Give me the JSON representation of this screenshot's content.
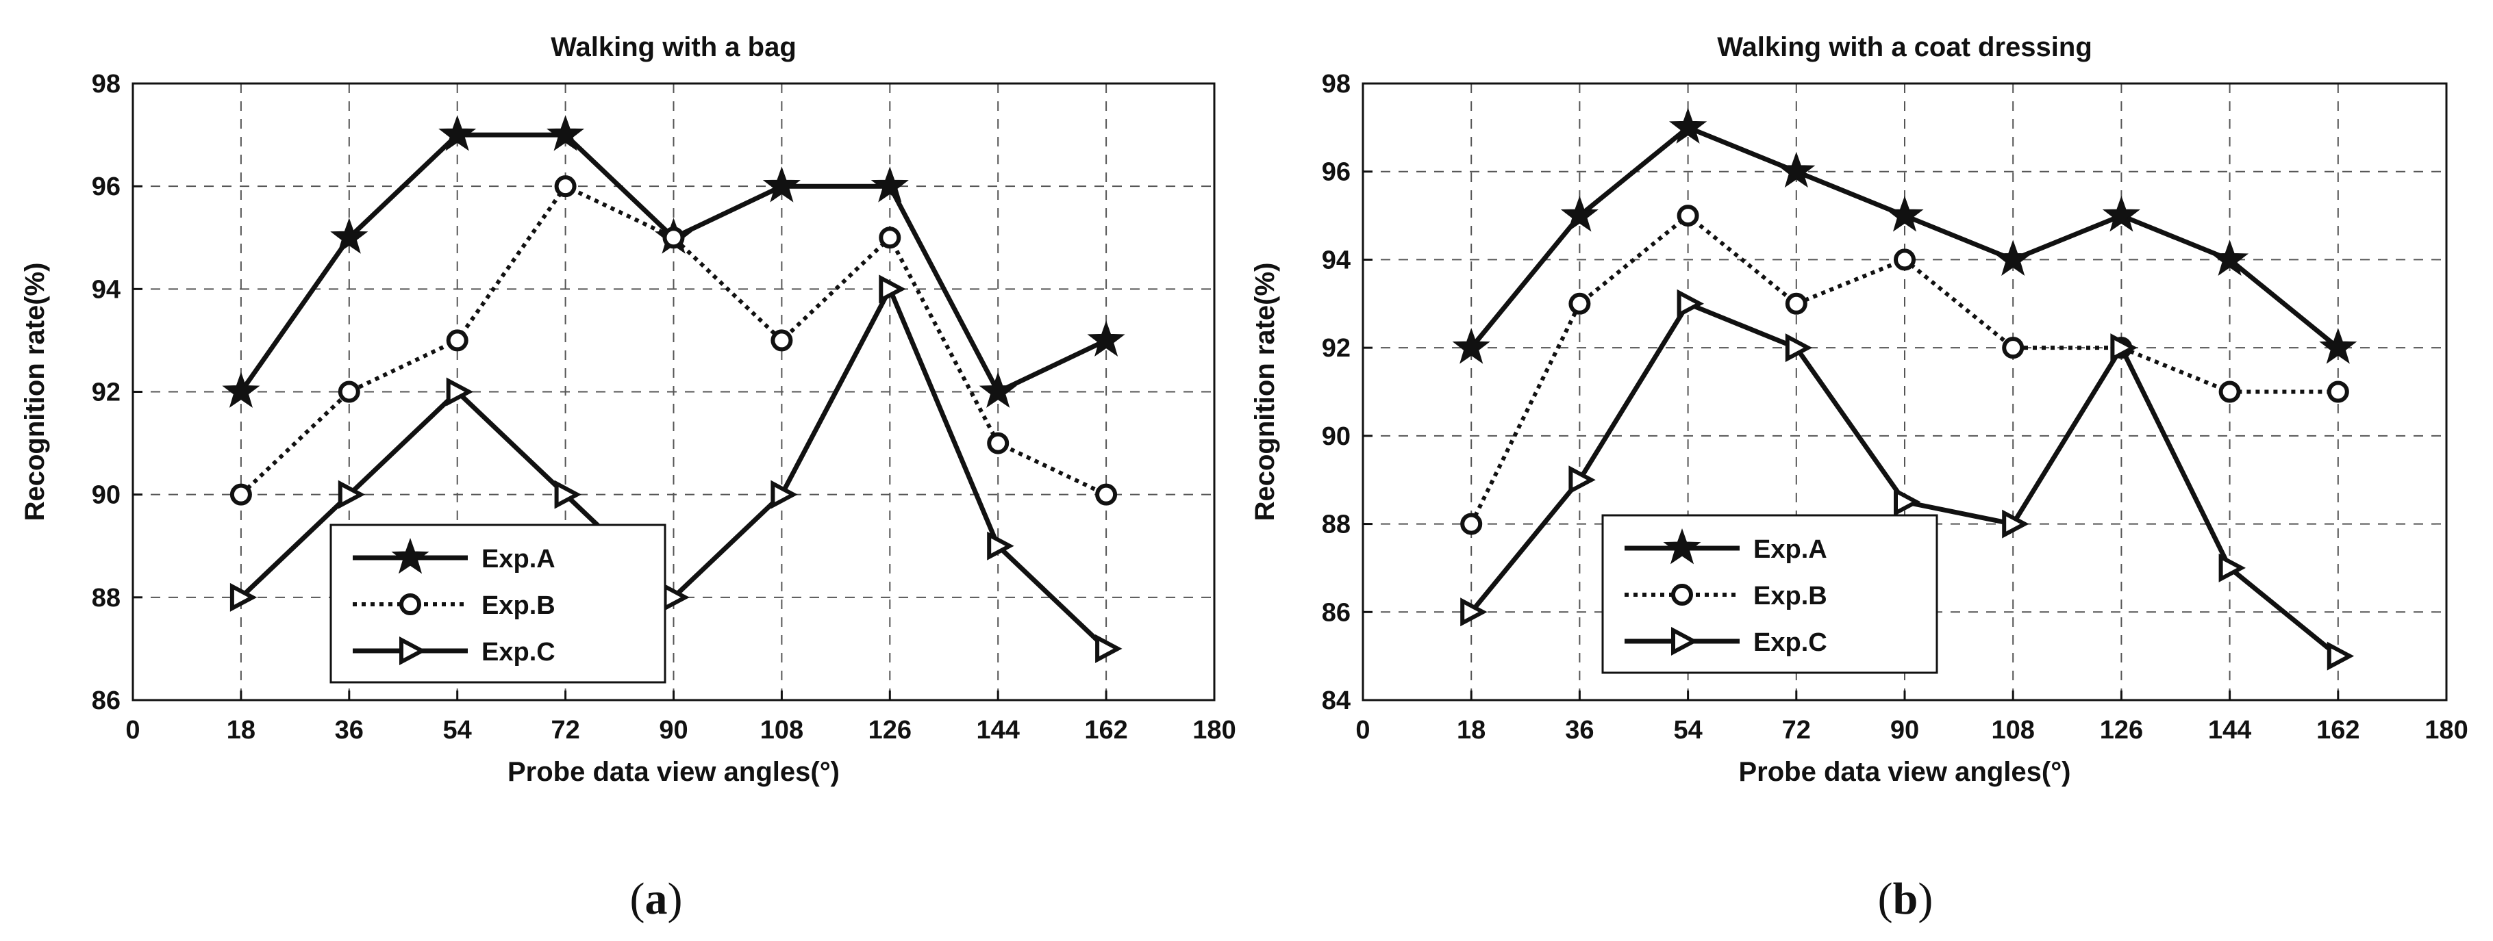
{
  "chart_data": [
    {
      "type": "line",
      "panel_label": "a",
      "title": "Walking with a bag",
      "xlabel": "Probe data view angles(°)",
      "ylabel": "Recognition rate(%)",
      "xlim": [
        0,
        180
      ],
      "ylim": [
        86,
        98
      ],
      "xticks": [
        0,
        18,
        36,
        54,
        72,
        90,
        108,
        126,
        144,
        162,
        180
      ],
      "yticks": [
        86,
        88,
        90,
        92,
        94,
        96,
        98
      ],
      "grid": true,
      "legend_position": "bottom-left",
      "x": [
        18,
        36,
        54,
        72,
        90,
        108,
        126,
        144,
        162
      ],
      "series": [
        {
          "name": "Exp.A",
          "marker": "star",
          "line": "solid",
          "values": [
            92,
            95,
            97,
            97,
            95,
            96,
            96,
            92,
            93
          ]
        },
        {
          "name": "Exp.B",
          "marker": "circle",
          "line": "dotted",
          "values": [
            90,
            92,
            93,
            96,
            95,
            93,
            95,
            91,
            90
          ]
        },
        {
          "name": "Exp.C",
          "marker": "triangle-right",
          "line": "solid",
          "values": [
            88,
            90,
            92,
            90,
            88,
            90,
            94,
            89,
            87
          ]
        }
      ]
    },
    {
      "type": "line",
      "panel_label": "b",
      "title": "Walking with a coat dressing",
      "xlabel": "Probe data view angles(°)",
      "ylabel": "Recognition rate(%)",
      "xlim": [
        0,
        180
      ],
      "ylim": [
        84,
        98
      ],
      "xticks": [
        0,
        18,
        36,
        54,
        72,
        90,
        108,
        126,
        144,
        162,
        180
      ],
      "yticks": [
        84,
        86,
        88,
        90,
        92,
        94,
        96,
        98
      ],
      "grid": true,
      "legend_position": "bottom-left",
      "x": [
        18,
        36,
        54,
        72,
        90,
        108,
        126,
        144,
        162
      ],
      "series": [
        {
          "name": "Exp.A",
          "marker": "star",
          "line": "solid",
          "values": [
            92,
            95,
            97,
            96,
            95,
            94,
            95,
            94,
            92
          ]
        },
        {
          "name": "Exp.B",
          "marker": "circle",
          "line": "dotted",
          "values": [
            88,
            93,
            95,
            93,
            94,
            92,
            92,
            91,
            91
          ]
        },
        {
          "name": "Exp.C",
          "marker": "triangle-right",
          "line": "solid",
          "values": [
            86,
            89,
            93,
            92,
            88.5,
            88,
            92,
            87,
            85
          ]
        }
      ]
    }
  ],
  "colors": {
    "ink": "#111111",
    "grid": "#555555",
    "background": "#ffffff"
  }
}
